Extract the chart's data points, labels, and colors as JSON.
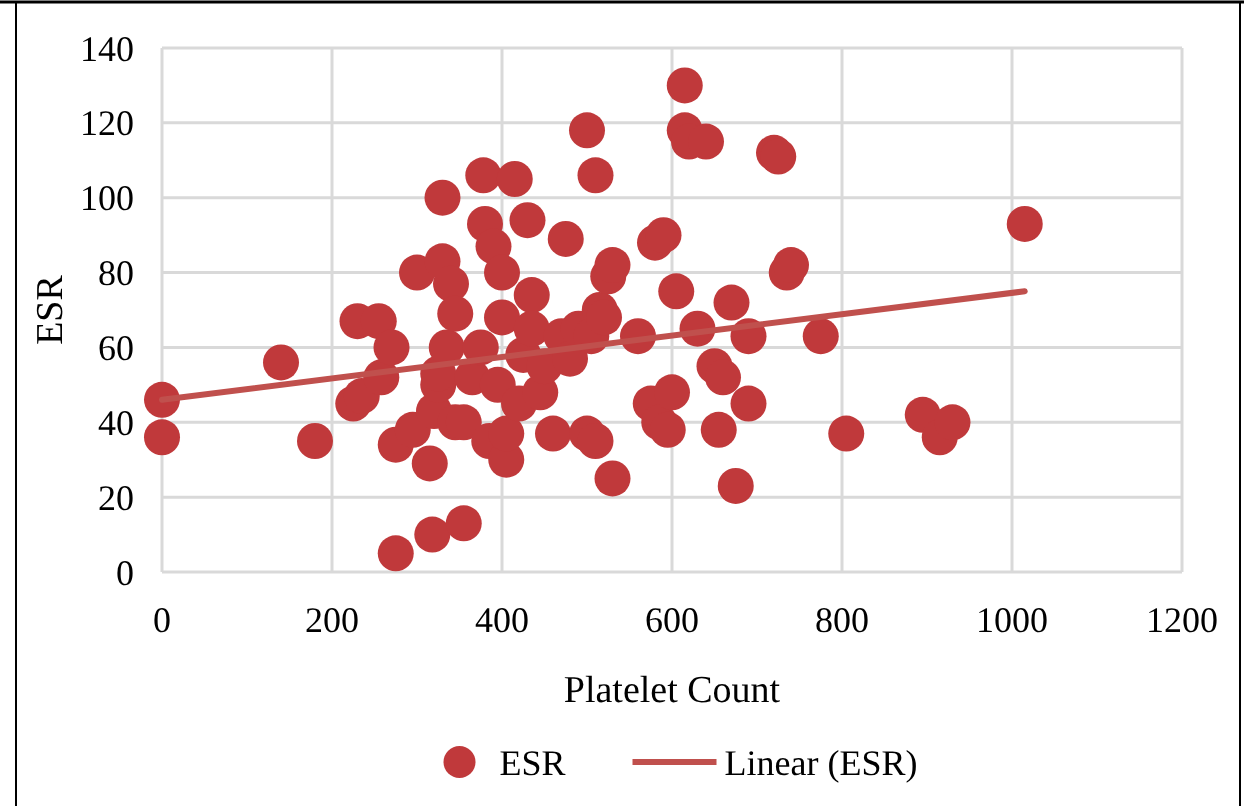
{
  "chart_data": {
    "type": "scatter",
    "xlabel": "Platelet Count",
    "ylabel": "ESR",
    "xlim": [
      0,
      1200
    ],
    "xticks": [
      0,
      200,
      400,
      600,
      800,
      1000,
      1200
    ],
    "ylim": [
      0,
      140
    ],
    "yticks": [
      0,
      20,
      40,
      60,
      80,
      100,
      120,
      140
    ],
    "grid": true,
    "legend": "bottom",
    "series": [
      {
        "name": "ESR",
        "marker": "circle",
        "color": "#c0393b",
        "x": [
          0,
          0,
          140,
          180,
          225,
          230,
          235,
          255,
          258,
          270,
          275,
          275,
          295,
          300,
          315,
          318,
          320,
          325,
          325,
          330,
          330,
          335,
          340,
          345,
          345,
          355,
          355,
          365,
          375,
          378,
          380,
          385,
          390,
          395,
          400,
          400,
          405,
          405,
          415,
          420,
          425,
          430,
          435,
          435,
          445,
          450,
          460,
          470,
          475,
          480,
          490,
          500,
          500,
          505,
          510,
          510,
          515,
          520,
          525,
          530,
          530,
          560,
          575,
          580,
          585,
          590,
          595,
          600,
          605,
          615,
          615,
          620,
          630,
          640,
          650,
          655,
          660,
          670,
          675,
          690,
          690,
          720,
          725,
          735,
          740,
          775,
          805,
          895,
          915,
          930,
          1015
        ],
        "values": [
          46,
          36,
          56,
          35,
          45,
          67,
          47,
          67,
          52,
          60,
          34,
          5,
          38,
          80,
          29,
          10,
          43,
          50,
          53,
          83,
          100,
          60,
          77,
          69,
          40,
          13,
          40,
          52,
          60,
          106,
          93,
          35,
          87,
          50,
          80,
          68,
          30,
          37,
          105,
          45,
          58,
          94,
          74,
          65,
          48,
          55,
          37,
          63,
          89,
          57,
          65,
          118,
          37,
          63,
          106,
          35,
          70,
          68,
          79,
          82,
          25,
          63,
          45,
          88,
          40,
          90,
          38,
          48,
          75,
          130,
          118,
          115,
          65,
          115,
          55,
          38,
          52,
          72,
          23,
          63,
          45,
          112,
          111,
          80,
          82,
          63,
          37,
          42,
          36,
          40,
          93
        ]
      },
      {
        "name": "Linear (ESR)",
        "type": "line",
        "color": "#c0504d",
        "x": [
          0,
          1015
        ],
        "values": [
          46,
          75
        ],
        "marker": "none"
      }
    ]
  }
}
